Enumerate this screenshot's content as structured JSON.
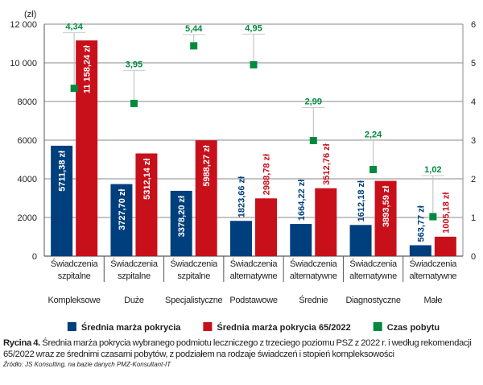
{
  "chart_data": {
    "type": "bar",
    "y_unit_label": "(zł)",
    "ylim": [
      0,
      12000
    ],
    "yticks": [
      "0",
      "2000",
      "4000",
      "6000",
      "8000",
      "10 000",
      "12 000"
    ],
    "y2lim": [
      0,
      6
    ],
    "y2ticks": [
      "0",
      "1",
      "2",
      "3",
      "4",
      "5",
      "6"
    ],
    "grid": true,
    "categories": [
      {
        "line1": "Świadczenia",
        "line2": "szpitalne",
        "group": "Kompleksowe"
      },
      {
        "line1": "Świadczenia",
        "line2": "szpitalne",
        "group": "Duże"
      },
      {
        "line1": "Świadczenia",
        "line2": "szpitalne",
        "group": "Specjalistyczne"
      },
      {
        "line1": "Świadczenia",
        "line2": "alternatywne",
        "group": "Podstawowe"
      },
      {
        "line1": "Świadczenia",
        "line2": "alternatywne",
        "group": "Średnie"
      },
      {
        "line1": "Świadczenia",
        "line2": "alternatywne",
        "group": "Diagnostyczne"
      },
      {
        "line1": "Świadczenia",
        "line2": "alternatywne",
        "group": "Małe"
      }
    ],
    "series": [
      {
        "name": "Średnia marża pokrycia",
        "axis": "left",
        "type": "bar",
        "color": "#003f7d",
        "values": [
          5711.38,
          3727.7,
          3378.2,
          1823.66,
          1664.22,
          1612.18,
          563.77
        ],
        "labels": [
          "5711,38 zł",
          "3727,70 zł",
          "3378,20 zł",
          "1823,66 zł",
          "1664,22 zł",
          "1612,18 zł",
          "563,77 zł"
        ]
      },
      {
        "name": "Średnia marża pokrycia 65/2022",
        "axis": "left",
        "type": "bar",
        "color": "#c8101a",
        "values": [
          11158.24,
          5312.14,
          5988.27,
          2988.78,
          3512.76,
          3893.59,
          1005.18
        ],
        "labels": [
          "11 158,24 zł",
          "5312,14 zł",
          "5988,27 zł",
          "2988,78 zł",
          "3512,76 zł",
          "3893,59 zł",
          "1005,18 zł"
        ]
      },
      {
        "name": "Czas pobytu",
        "axis": "right",
        "type": "scatter",
        "color": "#008a3e",
        "values": [
          4.34,
          3.95,
          5.44,
          4.95,
          2.99,
          2.24,
          1.02
        ],
        "labels": [
          "4,34",
          "3,95",
          "5,44",
          "4,95",
          "2,99",
          "2,24",
          "1,02"
        ]
      }
    ],
    "legend_position": "bottom"
  },
  "caption": {
    "label": "Rycina 4.",
    "text": " Średnia marża pokrycia wybranego podmiotu leczniczego z trzeciego poziomu PSZ z 2022 r. i według rekomendacji 65/2022 wraz ze średnimi czasami pobytów, z podziałem na rodzaje świadczeń i stopień kompleksowości"
  },
  "source": "Źródło: JS Konsulting, na bazie danych PMZ-Konsultant-IT"
}
